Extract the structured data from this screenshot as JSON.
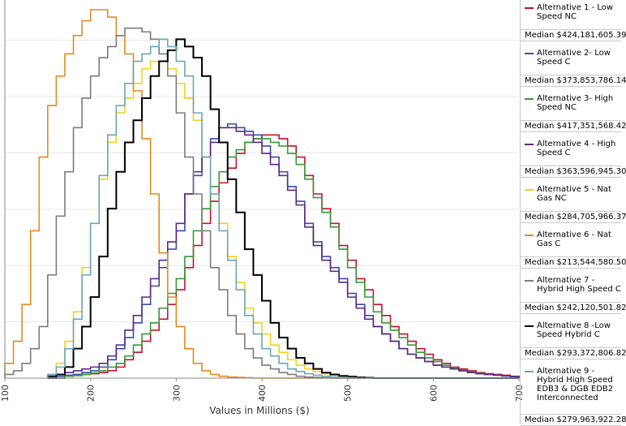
{
  "chart_data": {
    "type": "line",
    "subtype": "step-histogram",
    "title": "",
    "xlabel": "Values in Millions ($)",
    "ylabel": "",
    "xlim": [
      100,
      700
    ],
    "ylim": [
      0,
      1
    ],
    "xticks": [
      "100",
      "200",
      "300",
      "400",
      "500",
      "600",
      "700"
    ],
    "grid": true,
    "legend_position": "right",
    "series": [
      {
        "name": "Alternative 1 - Low Speed NC",
        "color": "#c8102e",
        "median": "Median $424,181,605.39",
        "x": [
          150,
          160,
          170,
          180,
          190,
          200,
          210,
          220,
          230,
          240,
          250,
          260,
          270,
          280,
          290,
          300,
          310,
          320,
          330,
          340,
          350,
          360,
          370,
          380,
          390,
          400,
          410,
          420,
          430,
          440,
          450,
          460,
          470,
          480,
          490,
          500,
          510,
          520,
          530,
          540,
          550,
          560,
          570,
          580,
          590,
          600,
          610,
          620,
          630,
          640,
          650,
          660,
          670,
          680,
          690,
          700
        ],
        "y": [
          0,
          0,
          0.005,
          0.007,
          0.01,
          0.012,
          0.015,
          0.02,
          0.03,
          0.05,
          0.07,
          0.1,
          0.13,
          0.16,
          0.2,
          0.24,
          0.3,
          0.36,
          0.42,
          0.48,
          0.53,
          0.57,
          0.61,
          0.64,
          0.65,
          0.66,
          0.66,
          0.65,
          0.63,
          0.6,
          0.55,
          0.5,
          0.46,
          0.42,
          0.36,
          0.32,
          0.27,
          0.24,
          0.2,
          0.17,
          0.14,
          0.12,
          0.1,
          0.08,
          0.065,
          0.05,
          0.04,
          0.03,
          0.025,
          0.02,
          0.015,
          0.012,
          0.01,
          0.008,
          0.005,
          0
        ]
      },
      {
        "name": "Alternative 2- Low Speed C",
        "color": "#3a4da8",
        "median": "Median $373,853,786.14",
        "x": [
          150,
          160,
          170,
          180,
          190,
          200,
          210,
          220,
          230,
          240,
          250,
          260,
          270,
          280,
          290,
          300,
          310,
          320,
          330,
          340,
          350,
          360,
          370,
          380,
          390,
          400,
          410,
          420,
          430,
          440,
          450,
          460,
          470,
          480,
          490,
          500,
          510,
          520,
          530,
          540,
          550,
          560,
          570,
          580,
          590,
          600,
          610,
          620,
          630,
          640,
          650,
          660,
          670,
          680,
          690,
          700
        ],
        "y": [
          0,
          0.005,
          0.008,
          0.01,
          0.015,
          0.02,
          0.03,
          0.05,
          0.08,
          0.11,
          0.15,
          0.2,
          0.25,
          0.3,
          0.35,
          0.4,
          0.5,
          0.55,
          0.6,
          0.65,
          0.68,
          0.69,
          0.68,
          0.67,
          0.66,
          0.63,
          0.6,
          0.56,
          0.52,
          0.48,
          0.42,
          0.37,
          0.33,
          0.3,
          0.27,
          0.23,
          0.2,
          0.17,
          0.14,
          0.12,
          0.1,
          0.08,
          0.065,
          0.055,
          0.045,
          0.035,
          0.03,
          0.025,
          0.02,
          0.015,
          0.012,
          0.01,
          0.008,
          0.006,
          0.004,
          0
        ]
      },
      {
        "name": "Alternative 3- High Speed NC",
        "color": "#3a9a3a",
        "median": "Median $417,351,568.42",
        "x": [
          150,
          160,
          170,
          180,
          190,
          200,
          210,
          220,
          230,
          240,
          250,
          260,
          270,
          280,
          290,
          300,
          310,
          320,
          330,
          340,
          350,
          360,
          370,
          380,
          390,
          400,
          410,
          420,
          430,
          440,
          450,
          460,
          470,
          480,
          490,
          500,
          510,
          520,
          530,
          540,
          550,
          560,
          570,
          580,
          590,
          600,
          610,
          620,
          630,
          640,
          650,
          660,
          670,
          680,
          690,
          700
        ],
        "y": [
          0,
          0,
          0.005,
          0.007,
          0.01,
          0.014,
          0.02,
          0.03,
          0.04,
          0.06,
          0.09,
          0.12,
          0.15,
          0.19,
          0.23,
          0.27,
          0.33,
          0.4,
          0.46,
          0.52,
          0.56,
          0.6,
          0.62,
          0.64,
          0.65,
          0.65,
          0.64,
          0.63,
          0.61,
          0.58,
          0.54,
          0.49,
          0.45,
          0.41,
          0.35,
          0.3,
          0.26,
          0.22,
          0.18,
          0.15,
          0.13,
          0.11,
          0.09,
          0.07,
          0.055,
          0.045,
          0.035,
          0.028,
          0.022,
          0.017,
          0.013,
          0.01,
          0.008,
          0.006,
          0.004,
          0
        ]
      },
      {
        "name": "Alternative 4 - High Speed C",
        "color": "#5b2a86",
        "median": "Median $363,596,945.30",
        "x": [
          150,
          160,
          170,
          180,
          190,
          200,
          210,
          220,
          230,
          240,
          250,
          260,
          270,
          280,
          290,
          300,
          310,
          320,
          330,
          340,
          350,
          360,
          370,
          380,
          390,
          400,
          410,
          420,
          430,
          440,
          450,
          460,
          470,
          480,
          490,
          500,
          510,
          520,
          530,
          540,
          550,
          560,
          570,
          580,
          590,
          600,
          610,
          620,
          630,
          640,
          650,
          660,
          670,
          680,
          690,
          700
        ],
        "y": [
          0,
          0.01,
          0.015,
          0.02,
          0.025,
          0.03,
          0.04,
          0.06,
          0.09,
          0.13,
          0.17,
          0.22,
          0.27,
          0.32,
          0.37,
          0.42,
          0.5,
          0.56,
          0.6,
          0.64,
          0.68,
          0.68,
          0.67,
          0.66,
          0.64,
          0.61,
          0.58,
          0.55,
          0.51,
          0.47,
          0.41,
          0.36,
          0.32,
          0.29,
          0.26,
          0.22,
          0.19,
          0.16,
          0.14,
          0.12,
          0.1,
          0.08,
          0.065,
          0.055,
          0.045,
          0.035,
          0.03,
          0.025,
          0.02,
          0.015,
          0.012,
          0.01,
          0.008,
          0.006,
          0.004,
          0
        ]
      },
      {
        "name": "Alternative 5 - Nat Gas NC",
        "color": "#f2d21b",
        "median": "Median $284,705,966.37",
        "x": [
          150,
          160,
          170,
          180,
          190,
          200,
          210,
          220,
          230,
          240,
          250,
          260,
          270,
          280,
          290,
          300,
          310,
          320,
          330,
          340,
          350,
          360,
          370,
          380,
          390,
          400,
          410,
          420,
          430,
          440,
          450,
          460,
          470,
          480,
          490,
          500,
          510,
          520,
          530,
          540,
          550,
          560,
          570,
          580,
          590,
          600,
          610,
          620,
          630,
          640,
          650,
          660,
          670,
          680,
          690,
          700
        ],
        "y": [
          0.01,
          0.04,
          0.1,
          0.18,
          0.3,
          0.42,
          0.54,
          0.64,
          0.72,
          0.76,
          0.8,
          0.84,
          0.86,
          0.86,
          0.84,
          0.8,
          0.76,
          0.7,
          0.6,
          0.5,
          0.42,
          0.33,
          0.26,
          0.19,
          0.15,
          0.12,
          0.09,
          0.07,
          0.05,
          0.035,
          0.025,
          0.018,
          0.012,
          0.008,
          0.005,
          0.003,
          0.002,
          0.001,
          0,
          0,
          0,
          0,
          0,
          0,
          0,
          0,
          0,
          0,
          0,
          0,
          0,
          0,
          0,
          0,
          0,
          0
        ]
      },
      {
        "name": "Alternative 6 - Nat Gas C",
        "color": "#e38a1e",
        "median": "Median $213,544,580.50",
        "x": [
          100,
          110,
          120,
          130,
          140,
          150,
          160,
          170,
          180,
          190,
          200,
          210,
          220,
          230,
          240,
          250,
          260,
          270,
          280,
          290,
          300,
          310,
          320,
          330,
          340,
          350,
          360,
          370,
          380,
          390,
          400,
          410,
          420,
          430,
          440,
          450,
          460,
          470,
          480,
          490,
          500,
          510,
          520,
          530,
          540,
          550,
          560,
          570,
          580,
          590,
          600,
          610,
          620,
          630,
          640,
          650,
          660,
          670,
          680,
          690,
          700
        ],
        "y": [
          0.04,
          0.1,
          0.2,
          0.4,
          0.6,
          0.74,
          0.82,
          0.88,
          0.93,
          0.97,
          1.0,
          1.0,
          0.98,
          0.93,
          0.88,
          0.78,
          0.65,
          0.5,
          0.34,
          0.22,
          0.14,
          0.08,
          0.04,
          0.02,
          0.01,
          0.005,
          0.003,
          0.002,
          0.001,
          0,
          0,
          0,
          0,
          0,
          0,
          0,
          0,
          0,
          0,
          0,
          0,
          0,
          0,
          0,
          0,
          0,
          0,
          0,
          0,
          0,
          0,
          0,
          0,
          0,
          0,
          0,
          0,
          0,
          0,
          0,
          0
        ]
      },
      {
        "name": "Alternative 7 -Hybrid High Speed C",
        "color": "#7c7c7c",
        "median": "Median $242,120,501.82",
        "x": [
          100,
          110,
          120,
          130,
          140,
          150,
          160,
          170,
          180,
          190,
          200,
          210,
          220,
          230,
          240,
          250,
          260,
          270,
          280,
          290,
          300,
          310,
          320,
          330,
          340,
          350,
          360,
          370,
          380,
          390,
          400,
          410,
          420,
          430,
          440,
          450,
          460,
          470,
          480,
          490,
          500,
          510,
          520,
          530,
          540,
          550,
          560,
          570,
          580,
          590,
          600,
          610,
          620,
          630,
          640,
          650,
          660,
          670,
          680,
          690,
          700
        ],
        "y": [
          0.01,
          0.02,
          0.04,
          0.08,
          0.14,
          0.28,
          0.44,
          0.56,
          0.68,
          0.76,
          0.82,
          0.87,
          0.9,
          0.93,
          0.95,
          0.95,
          0.94,
          0.92,
          0.88,
          0.82,
          0.72,
          0.6,
          0.5,
          0.4,
          0.3,
          0.24,
          0.17,
          0.12,
          0.08,
          0.055,
          0.035,
          0.025,
          0.015,
          0.01,
          0.005,
          0.003,
          0.002,
          0.001,
          0,
          0,
          0,
          0,
          0,
          0,
          0,
          0,
          0,
          0,
          0,
          0,
          0,
          0,
          0,
          0,
          0,
          0,
          0,
          0,
          0,
          0,
          0
        ]
      },
      {
        "name": "Alternative 8 -Low Speed Hybrid C",
        "color": "#000000",
        "median": "Median $293,372,806.82",
        "x": [
          150,
          160,
          170,
          180,
          190,
          200,
          210,
          220,
          230,
          240,
          250,
          260,
          270,
          280,
          290,
          300,
          310,
          320,
          330,
          340,
          350,
          360,
          370,
          380,
          390,
          400,
          410,
          420,
          430,
          440,
          450,
          460,
          470,
          480,
          490,
          500,
          510,
          520,
          530,
          540,
          550,
          560,
          570,
          580,
          590,
          600,
          610,
          620,
          630,
          640,
          650,
          660,
          670,
          680,
          690,
          700
        ],
        "y": [
          0.005,
          0.01,
          0.03,
          0.08,
          0.14,
          0.22,
          0.33,
          0.46,
          0.56,
          0.64,
          0.7,
          0.76,
          0.82,
          0.86,
          0.89,
          0.92,
          0.9,
          0.87,
          0.82,
          0.73,
          0.64,
          0.54,
          0.45,
          0.35,
          0.28,
          0.21,
          0.15,
          0.11,
          0.08,
          0.055,
          0.04,
          0.025,
          0.015,
          0.01,
          0.006,
          0.004,
          0.002,
          0.001,
          0,
          0,
          0,
          0,
          0,
          0,
          0,
          0,
          0,
          0,
          0,
          0,
          0,
          0,
          0,
          0,
          0,
          0
        ]
      },
      {
        "name": "Alternative 9 -Hybrid High Speed EDB3 & DGB EDB2 Interconnected",
        "color": "#6aa7b8",
        "median": "Median $279,963,922.28",
        "x": [
          150,
          160,
          170,
          180,
          190,
          200,
          210,
          220,
          230,
          240,
          250,
          260,
          270,
          280,
          290,
          300,
          310,
          320,
          330,
          340,
          350,
          360,
          370,
          380,
          390,
          400,
          410,
          420,
          430,
          440,
          450,
          460,
          470,
          480,
          490,
          500,
          510,
          520,
          530,
          540,
          550,
          560,
          570,
          580,
          590,
          600,
          610,
          620,
          630,
          640,
          650,
          660,
          670,
          680,
          690,
          700
        ],
        "y": [
          0.01,
          0.03,
          0.08,
          0.16,
          0.28,
          0.42,
          0.55,
          0.66,
          0.74,
          0.8,
          0.86,
          0.88,
          0.9,
          0.92,
          0.9,
          0.86,
          0.82,
          0.72,
          0.6,
          0.5,
          0.4,
          0.32,
          0.24,
          0.17,
          0.12,
          0.08,
          0.06,
          0.04,
          0.025,
          0.018,
          0.012,
          0.008,
          0.005,
          0.003,
          0.002,
          0.001,
          0,
          0,
          0,
          0,
          0,
          0,
          0,
          0,
          0,
          0,
          0,
          0,
          0,
          0,
          0,
          0,
          0,
          0,
          0,
          0
        ]
      }
    ]
  }
}
